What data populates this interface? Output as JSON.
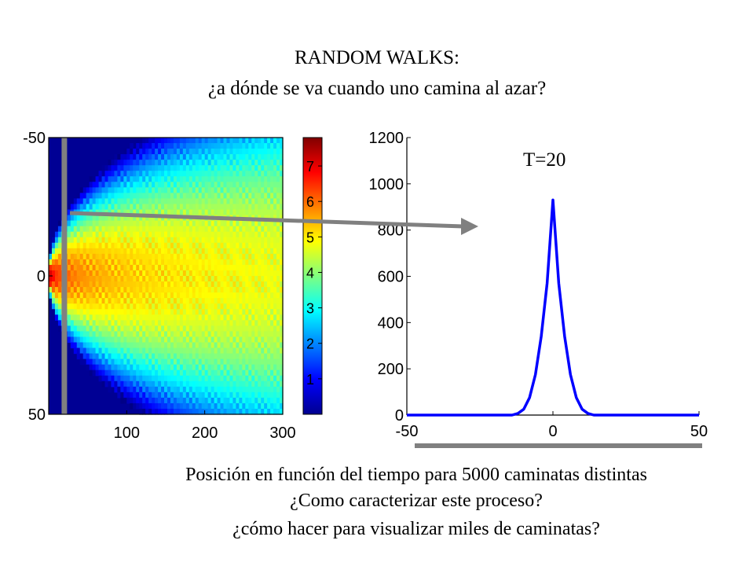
{
  "slide": {
    "title_line1": "RANDOM WALKS:",
    "title_line2": "¿a dónde se va cuando uno camina al azar?",
    "caption_line1": "Posición en función del tiempo para 5000 caminatas distintas",
    "caption_line2": "¿Como caracterizar este proceso?",
    "caption_line3": "¿cómo hacer para visualizar  miles de caminatas?"
  },
  "chart_data": [
    {
      "type": "heatmap",
      "title": "",
      "xlabel": "",
      "ylabel": "",
      "xlim": [
        0,
        300
      ],
      "ylim": [
        -50,
        50
      ],
      "y_reversed": true,
      "xticks": [
        "100",
        "200",
        "300"
      ],
      "yticks": [
        "-50",
        "0",
        "50"
      ],
      "colormap": "jet",
      "colorbar": {
        "min": 0,
        "max": 7.8,
        "ticks": [
          "1",
          "2",
          "3",
          "4",
          "5",
          "6",
          "7"
        ]
      },
      "highlight_time": 20,
      "highlight_color": "#808080"
    },
    {
      "type": "line",
      "title": "",
      "annotation": "T=20",
      "xlabel": "",
      "ylabel": "",
      "xlim": [
        -50,
        50
      ],
      "ylim": [
        0,
        1200
      ],
      "xticks": [
        "-50",
        "0",
        "50"
      ],
      "yticks": [
        "0",
        "200",
        "400",
        "600",
        "800",
        "1000",
        "1200"
      ],
      "series": [
        {
          "color": "#0000ff",
          "x": [
            -50,
            -14,
            -12,
            -10,
            -8,
            -6,
            -4,
            -2,
            0,
            2,
            4,
            6,
            8,
            10,
            12,
            14,
            50
          ],
          "y": [
            0,
            0,
            7,
            25,
            75,
            175,
            340,
            570,
            930,
            570,
            340,
            175,
            75,
            25,
            7,
            0,
            0
          ]
        }
      ]
    }
  ]
}
